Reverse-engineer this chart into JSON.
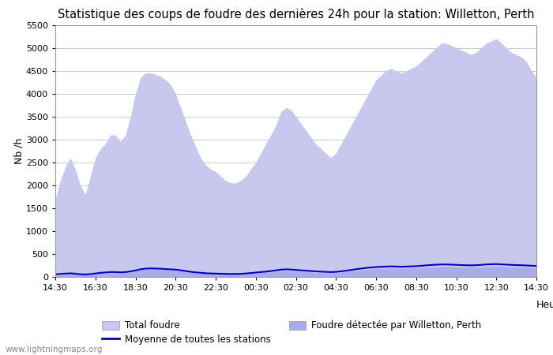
{
  "title": "Statistique des coups de foudre des dernières 24h pour la station: Willetton, Perth",
  "xlabel": "Heure",
  "ylabel": "Nb /h",
  "ylim": [
    0,
    5500
  ],
  "yticks": [
    0,
    500,
    1000,
    1500,
    2000,
    2500,
    3000,
    3500,
    4000,
    4500,
    5000,
    5500
  ],
  "xtick_labels": [
    "14:30",
    "16:30",
    "18:30",
    "20:30",
    "22:30",
    "00:30",
    "02:30",
    "04:30",
    "06:30",
    "08:30",
    "10:30",
    "12:30",
    "14:30"
  ],
  "watermark": "www.lightningmaps.org",
  "legend_entries": [
    "Total foudre",
    "Moyenne de toutes les stations",
    "Foudre détectée par Willetton, Perth"
  ],
  "total_foudre_color": "#c8c8ee",
  "willetton_color": "#aaaaee",
  "moyenne_color": "#0000bb",
  "background_color": "#ffffff",
  "plot_bg_color": "#ffffff",
  "grid_color": "#cccccc",
  "title_fontsize": 10.5,
  "total_foudre_values": [
    1700,
    2100,
    2400,
    2600,
    2350,
    2000,
    1800,
    2200,
    2600,
    2800,
    2900,
    3100,
    3100,
    2950,
    3100,
    3500,
    4000,
    4350,
    4450,
    4450,
    4420,
    4380,
    4300,
    4200,
    4000,
    3700,
    3400,
    3100,
    2850,
    2600,
    2450,
    2350,
    2300,
    2200,
    2100,
    2050,
    2050,
    2100,
    2200,
    2350,
    2500,
    2700,
    2900,
    3100,
    3300,
    3600,
    3700,
    3650,
    3500,
    3350,
    3200,
    3050,
    2900,
    2800,
    2700,
    2600,
    2700,
    2900,
    3100,
    3300,
    3500,
    3700,
    3900,
    4100,
    4300,
    4400,
    4500,
    4550,
    4500,
    4450,
    4500,
    4550,
    4600,
    4700,
    4800,
    4900,
    5000,
    5100,
    5100,
    5050,
    5000,
    4950,
    4900,
    4850,
    4900,
    5000,
    5100,
    5150,
    5200,
    5100,
    5000,
    4900,
    4850,
    4800,
    4700,
    4500,
    4350
  ],
  "willetton_values": [
    30,
    40,
    50,
    60,
    55,
    45,
    40,
    50,
    60,
    70,
    80,
    85,
    85,
    80,
    85,
    100,
    120,
    145,
    160,
    165,
    162,
    158,
    155,
    150,
    145,
    130,
    115,
    100,
    90,
    80,
    72,
    68,
    65,
    63,
    60,
    58,
    58,
    60,
    65,
    72,
    80,
    88,
    95,
    105,
    115,
    128,
    133,
    130,
    125,
    118,
    112,
    106,
    100,
    95,
    90,
    86,
    90,
    100,
    110,
    123,
    138,
    150,
    162,
    170,
    178,
    183,
    188,
    190,
    188,
    185,
    188,
    190,
    193,
    200,
    208,
    215,
    220,
    225,
    225,
    222,
    218,
    215,
    212,
    210,
    212,
    218,
    225,
    228,
    232,
    228,
    222,
    218,
    215,
    212,
    208,
    203,
    198
  ],
  "moyenne_values": [
    55,
    65,
    72,
    78,
    70,
    58,
    52,
    62,
    75,
    88,
    98,
    105,
    105,
    98,
    105,
    120,
    140,
    165,
    180,
    185,
    182,
    178,
    172,
    165,
    160,
    145,
    128,
    112,
    100,
    90,
    80,
    75,
    72,
    70,
    67,
    64,
    64,
    67,
    75,
    84,
    95,
    105,
    115,
    128,
    142,
    158,
    165,
    160,
    152,
    143,
    136,
    128,
    122,
    115,
    110,
    105,
    110,
    122,
    135,
    150,
    168,
    182,
    196,
    205,
    215,
    220,
    226,
    230,
    226,
    222,
    226,
    230,
    234,
    242,
    252,
    260,
    266,
    272,
    272,
    268,
    263,
    258,
    254,
    252,
    256,
    263,
    272,
    276,
    280,
    274,
    268,
    262,
    258,
    254,
    250,
    244,
    238
  ]
}
